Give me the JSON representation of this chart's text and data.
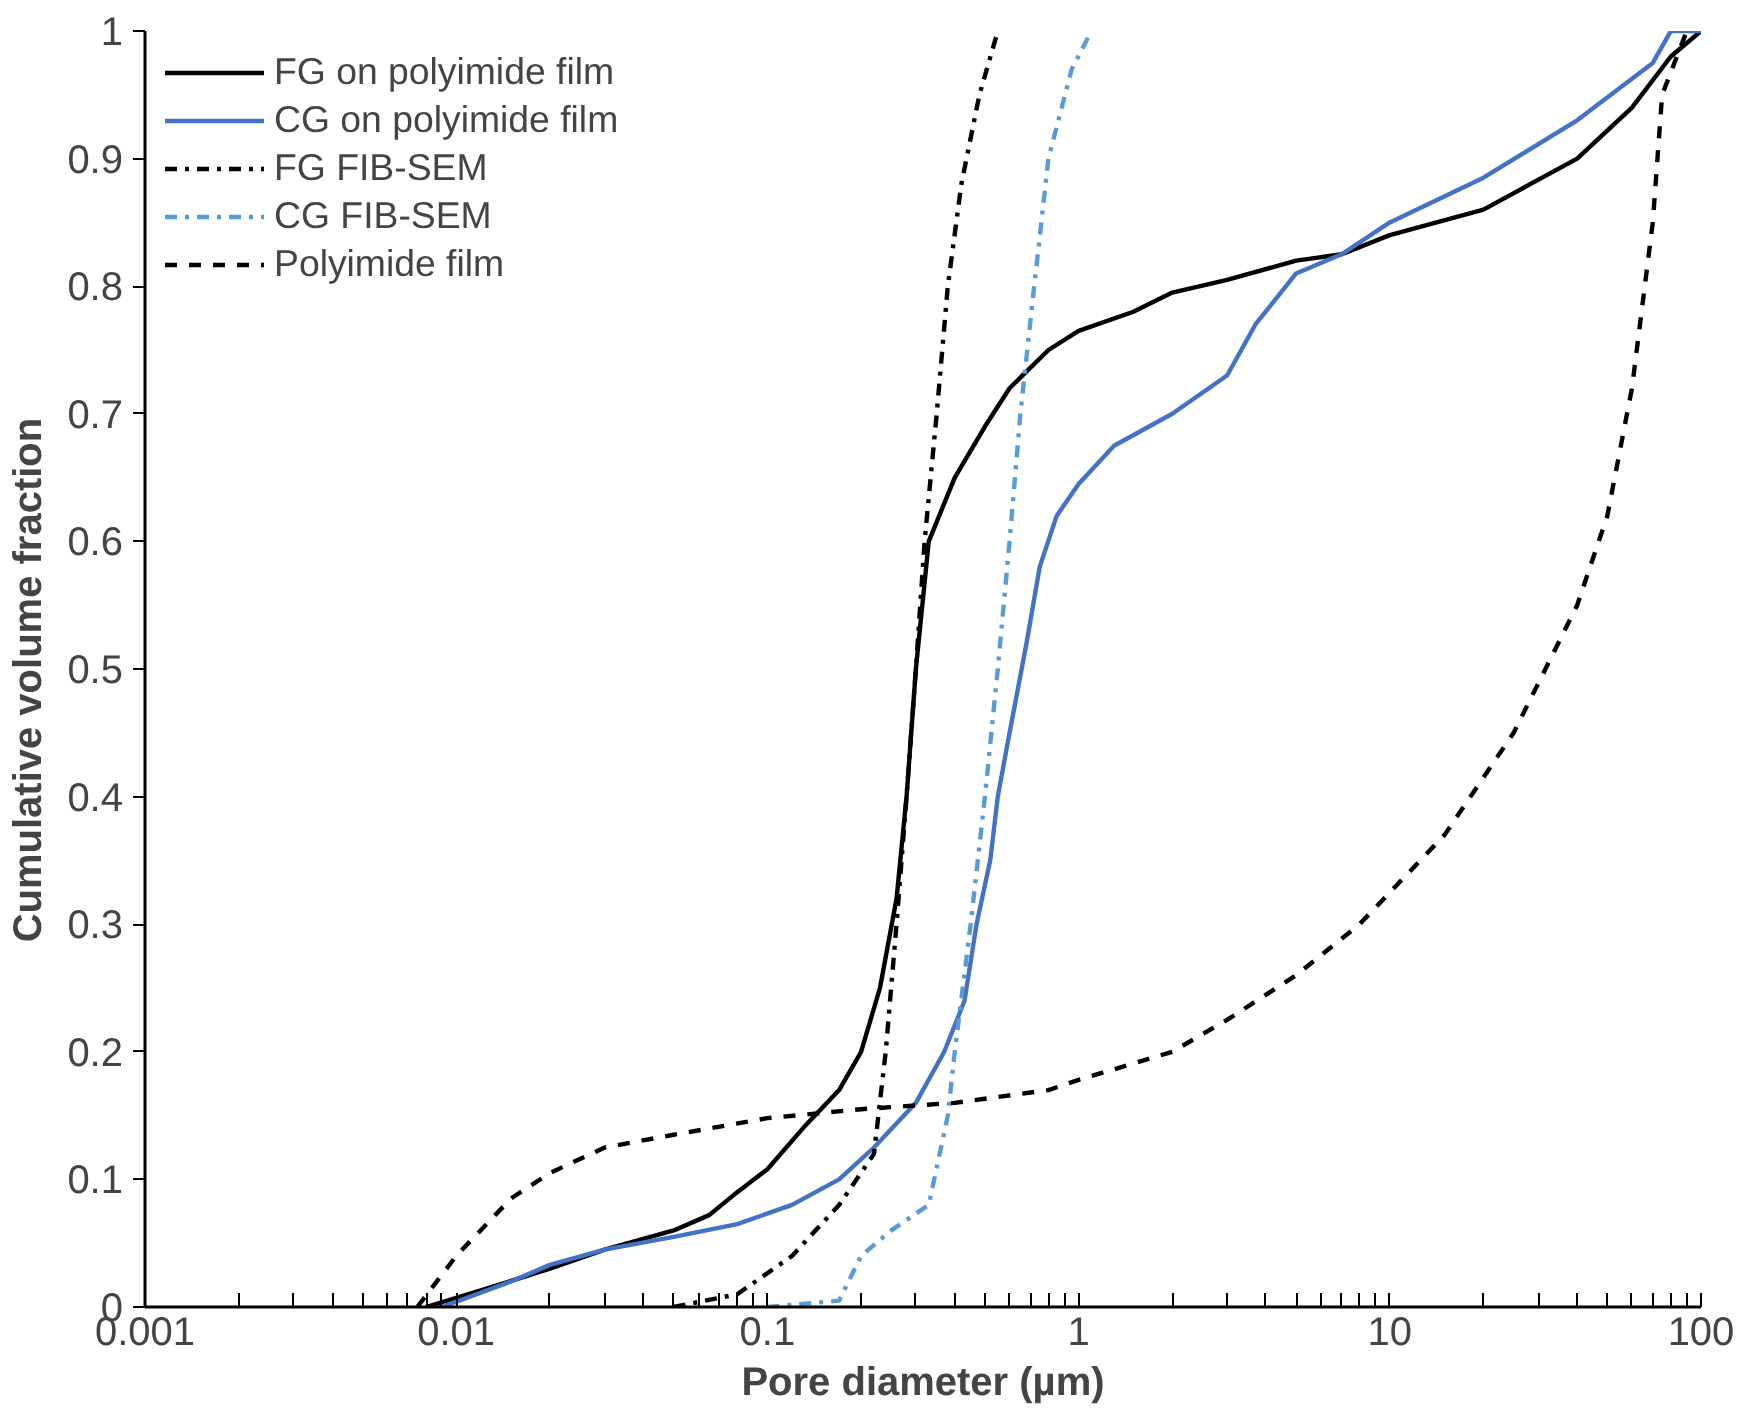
{
  "chart_data": {
    "type": "line",
    "xlabel": "Pore diameter (µm)",
    "ylabel": "Cumulative  volume  fraction",
    "log": "x",
    "grid": false,
    "legend": "top left",
    "xlim": [
      0.001,
      100
    ],
    "xticks": [
      0.001,
      0.01,
      0.1,
      1,
      10,
      100
    ],
    "ylim": [
      0,
      1
    ],
    "yticks": [
      0,
      0.1,
      0.2,
      0.3,
      0.4,
      0.5,
      0.6,
      0.7,
      0.8,
      0.9,
      1
    ],
    "series": [
      {
        "name": "FG on polyimide film",
        "color": "#000000",
        "line_style": "solid",
        "x": [
          0.008,
          0.012,
          0.02,
          0.03,
          0.05,
          0.065,
          0.08,
          0.1,
          0.13,
          0.17,
          0.2,
          0.23,
          0.26,
          0.28,
          0.3,
          0.33,
          0.4,
          0.5,
          0.6,
          0.8,
          1,
          1.5,
          2,
          3,
          5,
          7,
          10,
          20,
          40,
          60,
          80,
          100
        ],
        "values": [
          0,
          0.013,
          0.03,
          0.045,
          0.06,
          0.072,
          0.09,
          0.108,
          0.14,
          0.17,
          0.2,
          0.25,
          0.32,
          0.4,
          0.5,
          0.6,
          0.65,
          0.69,
          0.72,
          0.75,
          0.765,
          0.78,
          0.795,
          0.805,
          0.82,
          0.825,
          0.84,
          0.86,
          0.9,
          0.94,
          0.98,
          1
        ]
      },
      {
        "name": "CG on polyimide film",
        "color": "#4472c4",
        "line_style": "solid",
        "x": [
          0.009,
          0.015,
          0.02,
          0.03,
          0.05,
          0.08,
          0.12,
          0.17,
          0.22,
          0.3,
          0.37,
          0.43,
          0.47,
          0.52,
          0.55,
          0.6,
          0.68,
          0.75,
          0.85,
          1,
          1.3,
          2,
          3,
          3.7,
          5,
          7,
          10,
          20,
          40,
          70,
          80,
          100
        ],
        "values": [
          0,
          0.02,
          0.033,
          0.045,
          0.055,
          0.065,
          0.08,
          0.1,
          0.125,
          0.16,
          0.2,
          0.24,
          0.3,
          0.35,
          0.4,
          0.45,
          0.52,
          0.58,
          0.62,
          0.645,
          0.675,
          0.7,
          0.73,
          0.77,
          0.81,
          0.825,
          0.85,
          0.885,
          0.93,
          0.975,
          1,
          1
        ]
      },
      {
        "name": "FG FIB-SEM",
        "color": "#000000",
        "line_style": "dashdot",
        "x": [
          0.05,
          0.08,
          0.12,
          0.17,
          0.22,
          0.24,
          0.26,
          0.28,
          0.3,
          0.32,
          0.35,
          0.38,
          0.42,
          0.48,
          0.55
        ],
        "values": [
          0,
          0.01,
          0.04,
          0.08,
          0.12,
          0.2,
          0.3,
          0.4,
          0.5,
          0.6,
          0.7,
          0.8,
          0.88,
          0.95,
          1
        ]
      },
      {
        "name": "CG FIB-SEM",
        "color": "#5b9bd5",
        "line_style": "dashdot",
        "x": [
          0.1,
          0.17,
          0.2,
          0.25,
          0.33,
          0.38,
          0.4,
          0.45,
          0.5,
          0.55,
          0.6,
          0.65,
          0.72,
          0.8,
          0.95,
          1.1
        ],
        "values": [
          0,
          0.005,
          0.04,
          0.06,
          0.08,
          0.15,
          0.2,
          0.3,
          0.4,
          0.5,
          0.6,
          0.7,
          0.8,
          0.9,
          0.97,
          1
        ]
      },
      {
        "name": "Polyimide film",
        "color": "#000000",
        "line_style": "dashed",
        "x": [
          0.0075,
          0.01,
          0.015,
          0.02,
          0.03,
          0.05,
          0.1,
          0.2,
          0.4,
          0.8,
          1,
          2,
          3,
          5,
          8,
          15,
          25,
          40,
          50,
          60,
          70,
          75,
          90
        ],
        "values": [
          0,
          0.04,
          0.085,
          0.105,
          0.125,
          0.135,
          0.148,
          0.155,
          0.16,
          0.17,
          0.178,
          0.2,
          0.225,
          0.26,
          0.3,
          0.37,
          0.45,
          0.55,
          0.62,
          0.72,
          0.85,
          0.95,
          1
        ]
      }
    ]
  }
}
